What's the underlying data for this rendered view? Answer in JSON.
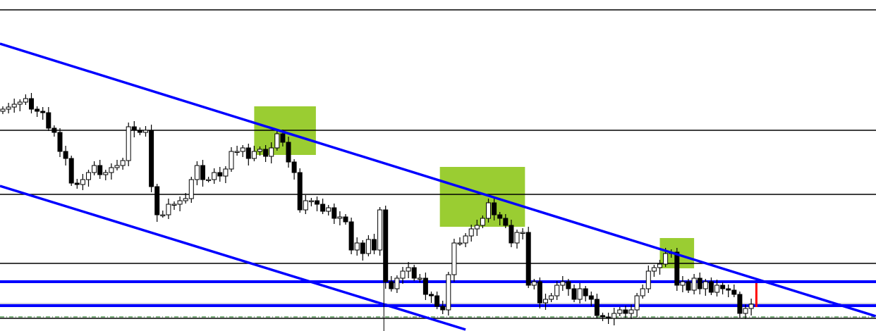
{
  "chart_data": {
    "type": "candlestick",
    "title": "",
    "xlabel": "",
    "ylabel": "",
    "grid": false,
    "axes_visible": false,
    "colors": {
      "background": "#ffffff",
      "bull_body": "#ffffff",
      "bear_body": "#000000",
      "trendline": "#0000ff",
      "level": "#000000",
      "zone": "#9acd32",
      "marker": "#ff0000",
      "dashed_level": "#006400"
    },
    "ylim": [
      0,
      470
    ],
    "close": [
      315,
      318,
      322,
      325,
      330,
      315,
      312,
      310,
      288,
      282,
      255,
      245,
      210,
      208,
      215,
      225,
      235,
      222,
      225,
      232,
      235,
      242,
      290,
      285,
      282,
      285,
      205,
      165,
      165,
      180,
      180,
      185,
      188,
      215,
      235,
      215,
      215,
      225,
      220,
      230,
      255,
      255,
      260,
      245,
      255,
      258,
      248,
      260,
      280,
      268,
      240,
      225,
      172,
      185,
      185,
      180,
      170,
      175,
      160,
      162,
      155,
      115,
      125,
      110,
      130,
      115,
      172,
      70,
      60,
      75,
      85,
      90,
      75,
      75,
      52,
      50,
      35,
      30,
      80,
      125,
      125,
      135,
      145,
      150,
      160,
      182,
      165,
      160,
      150,
      125,
      140,
      140,
      65,
      70,
      40,
      45,
      50,
      65,
      70,
      60,
      45,
      60,
      50,
      45,
      22,
      20,
      18,
      25,
      30,
      25,
      30,
      50,
      60,
      85,
      90,
      95,
      110,
      112,
      65,
      70,
      58,
      75,
      60,
      70,
      55,
      65,
      60,
      58,
      52,
      25,
      32,
      38
    ],
    "horizontal_levels": [
      {
        "price": 456,
        "style": "solid",
        "color": "#000000"
      },
      {
        "price": 285,
        "style": "solid",
        "color": "#000000"
      },
      {
        "price": 194,
        "style": "solid",
        "color": "#000000"
      },
      {
        "price": 96,
        "style": "solid",
        "color": "#000000"
      },
      {
        "price": 70,
        "style": "thick",
        "color": "#0000ff"
      },
      {
        "price": 39,
        "style": "thin",
        "color": "#a0a0c0"
      },
      {
        "price": 36,
        "style": "thick",
        "color": "#0000ff"
      },
      {
        "price": 20,
        "style": "dashdot",
        "color": "#006400"
      },
      {
        "price": 18,
        "style": "solid",
        "color": "#000000"
      }
    ],
    "trendlines": [
      {
        "from": {
          "bar": -0.5,
          "price": 408
        },
        "to": {
          "bar": 152.8,
          "price": 21
        }
      },
      {
        "from": {
          "bar": -0.5,
          "price": 206
        },
        "to": {
          "bar": 81,
          "price": 2
        }
      }
    ],
    "zones": [
      {
        "bar_from": 44,
        "bar_to": 54.8,
        "price_top": 319,
        "price_bottom": 250
      },
      {
        "bar_from": 76.5,
        "bar_to": 91.4,
        "price_top": 233,
        "price_bottom": 148
      },
      {
        "bar_from": 115,
        "bar_to": 121,
        "price_top": 132,
        "price_bottom": 89
      }
    ],
    "vertical_markers": [
      {
        "bar": 66.7,
        "price_top": 70,
        "price_bottom": 0,
        "color": "#000000"
      },
      {
        "bar": 131.9,
        "price_top": 68,
        "price_bottom": 34,
        "color": "#ff0000"
      }
    ]
  }
}
